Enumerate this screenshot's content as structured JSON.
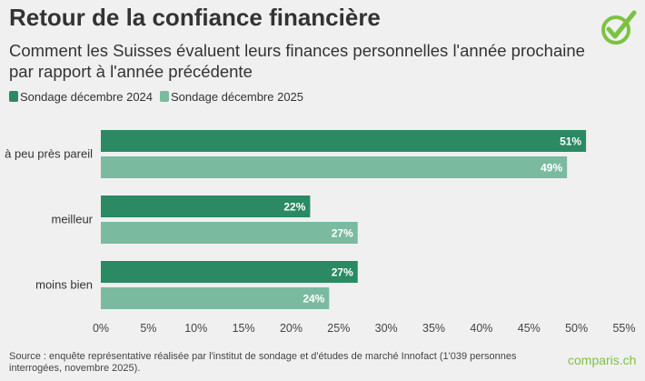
{
  "header": {
    "title": "Retour de la confiance financière",
    "subtitle": "Comment les Suisses évaluent leurs finances personnelles l'année prochaine par rapport à l'année précédente"
  },
  "colors": {
    "series1": "#2b8a63",
    "series2": "#7abb9f",
    "background": "#f0f0f0",
    "brand": "#7cc242"
  },
  "chart_data": {
    "type": "bar",
    "orientation": "horizontal",
    "title": "Retour de la confiance financière",
    "categories": [
      "à peu près pareil",
      "meilleur",
      "moins bien"
    ],
    "series": [
      {
        "name": "Sondage décembre 2024",
        "values": [
          51,
          22,
          27
        ]
      },
      {
        "name": "Sondage décembre 2025",
        "values": [
          49,
          27,
          24
        ]
      }
    ],
    "value_labels": [
      [
        "51%",
        "22%",
        "27%"
      ],
      [
        "49%",
        "27%",
        "24%"
      ]
    ],
    "xlim": [
      0,
      55
    ],
    "xticks": [
      "0%",
      "5%",
      "10%",
      "15%",
      "20%",
      "25%",
      "30%",
      "35%",
      "40%",
      "45%",
      "50%",
      "55%"
    ],
    "legend": "top-left",
    "grid": false
  },
  "footer": {
    "source": "Source : enquête représentative réalisée par l'institut de sondage et d'études de marché Innofact (1'039 personnes interrogées, novembre 2025).",
    "brand": "comparis.ch"
  }
}
